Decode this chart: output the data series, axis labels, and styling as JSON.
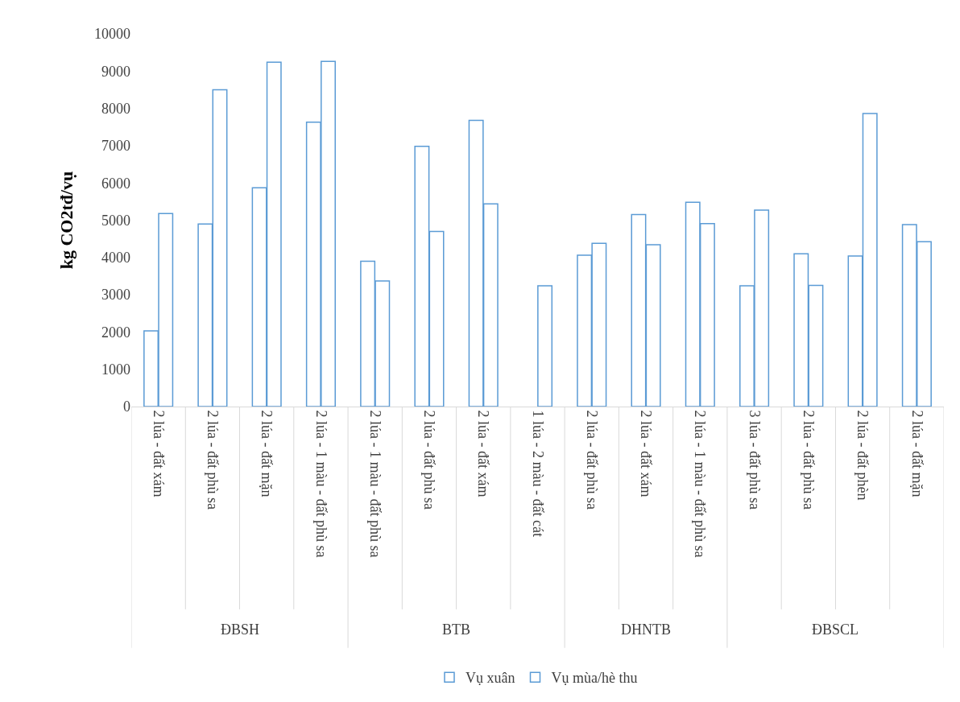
{
  "chart_data": {
    "type": "bar",
    "ylabel": "kg CO2tđ/vụ",
    "categories": [
      "2 lúa - đất xám",
      "2 lúa - đất phù sa",
      "2 lúa - đất mặn",
      "2 lúa - 1 màu - đất phù sa",
      "2 lúa - 1 màu - đất phù sa",
      "2 lúa - đất phù sa",
      "2 lúa - đất xám",
      "1 lúa - 2 màu - đất cát",
      "2 lúa - đất phù sa",
      "2 lúa - đất xám",
      "2 lúa - 1 màu - đất phù sa",
      "3 lúa - đất phù sa",
      "2 lúa - đất phù sa",
      "2 lúa - đất phèn",
      "2 lúa - đất mặn"
    ],
    "annotations": [
      "ĐBSH",
      "BTB",
      "DHNTB",
      "ĐBSCL"
    ],
    "series": [
      {
        "name": "Vụ xuân",
        "color": "#5b9bd5",
        "values": [
          2030,
          4900,
          5870,
          7630,
          3900,
          6980,
          7680,
          null,
          4060,
          5150,
          5480,
          3240,
          4100,
          4040,
          4880
        ]
      },
      {
        "name": "Vụ mùa/hè thu",
        "color": "#5b9bd5",
        "values": [
          5180,
          8500,
          9240,
          9260,
          3370,
          4700,
          5440,
          3240,
          4380,
          4340,
          4910,
          5270,
          3250,
          7860,
          4420
        ]
      }
    ],
    "ylim": [
      0,
      10000
    ],
    "yticks": [
      0,
      1000,
      2000,
      3000,
      4000,
      5000,
      6000,
      7000,
      8000,
      9000,
      10000
    ],
    "grid": false,
    "legend": "bottom"
  }
}
